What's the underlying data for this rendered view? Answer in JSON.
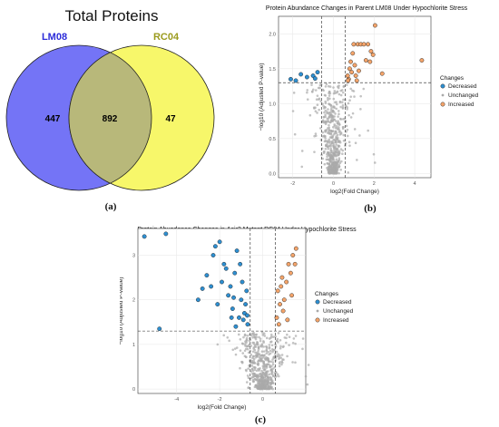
{
  "chart_data": [
    {
      "type": "venn",
      "title": "Total Proteins",
      "sets": [
        {
          "name": "LM08",
          "only": 447,
          "color": "#7474f6",
          "label_color": "#2c2cd9"
        },
        {
          "name": "RC04",
          "only": 47,
          "color": "#f7f76a",
          "label_color": "#9b9b1e"
        }
      ],
      "intersection": 892,
      "intersection_color": "#b8b87a",
      "caption": "(a)"
    },
    {
      "type": "scatter",
      "title": "Protein Abundance Changes in Parent LM08 Under Hypochlorite Stress",
      "xlabel": "log2(Fold Change)",
      "ylabel": "−log10 (Adjusted P-value)",
      "xlim": [
        -2.7,
        4.8
      ],
      "ylim": [
        -0.06,
        2.25
      ],
      "xticks": [
        -2,
        0,
        2,
        4
      ],
      "yticks": [
        0.0,
        0.5,
        1.0,
        1.5,
        2.0
      ],
      "vlines": [
        -0.58,
        0.58
      ],
      "hline": 1.3,
      "grid": true,
      "legend": {
        "title": "Changes",
        "items": [
          "Decreased",
          "Unchanged",
          "Increased"
        ],
        "position": "right"
      },
      "series": [
        {
          "name": "Decreased",
          "color": "#2e8fd1",
          "points": [
            [
              -2.1,
              1.35
            ],
            [
              -1.6,
              1.42
            ],
            [
              -1.3,
              1.38
            ],
            [
              -1.0,
              1.4
            ],
            [
              -0.9,
              1.36
            ],
            [
              -0.78,
              1.45
            ],
            [
              -1.85,
              1.33
            ]
          ]
        },
        {
          "name": "Increased",
          "color": "#f4a46a",
          "points": [
            [
              0.7,
              1.4
            ],
            [
              0.75,
              1.35
            ],
            [
              0.8,
              1.5
            ],
            [
              0.85,
              1.6
            ],
            [
              0.9,
              1.45
            ],
            [
              0.95,
              1.72
            ],
            [
              1.0,
              1.85
            ],
            [
              1.05,
              1.55
            ],
            [
              1.1,
              1.4
            ],
            [
              1.15,
              1.33
            ],
            [
              1.2,
              1.85
            ],
            [
              1.35,
              1.85
            ],
            [
              1.5,
              1.85
            ],
            [
              1.6,
              1.62
            ],
            [
              1.7,
              1.85
            ],
            [
              1.85,
              1.75
            ],
            [
              1.95,
              1.7
            ],
            [
              2.05,
              2.12
            ],
            [
              2.4,
              1.43
            ],
            [
              4.35,
              1.62
            ],
            [
              0.72,
              1.33
            ],
            [
              1.25,
              1.47
            ],
            [
              1.8,
              1.6
            ]
          ]
        }
      ],
      "unchanged_color": "#a9a9a9",
      "caption": "(b)"
    },
    {
      "type": "scatter",
      "title": "Protein Abundance Changes in Δsir2 Mutant RC04 Under Hypochlorite Stress",
      "xlabel": "log2(Fold Change)",
      "ylabel": "−log10 (Adjusted P-value)",
      "xlim": [
        -5.8,
        2.0
      ],
      "ylim": [
        -0.1,
        3.6
      ],
      "xticks": [
        -4,
        -2,
        0
      ],
      "yticks": [
        0,
        1,
        2,
        3
      ],
      "vlines": [
        -0.58,
        0.58
      ],
      "hline": 1.3,
      "grid": true,
      "legend": {
        "title": "Changes",
        "items": [
          "Decreased",
          "Unchanged",
          "Increased"
        ],
        "position": "right"
      },
      "series": [
        {
          "name": "Decreased",
          "color": "#2e8fd1",
          "points": [
            [
              -5.5,
              3.42
            ],
            [
              -4.5,
              3.48
            ],
            [
              -4.8,
              1.35
            ],
            [
              -3.0,
              2.0
            ],
            [
              -2.6,
              2.55
            ],
            [
              -2.8,
              2.25
            ],
            [
              -2.3,
              3.0
            ],
            [
              -2.2,
              3.2
            ],
            [
              -2.0,
              3.3
            ],
            [
              -1.8,
              2.8
            ],
            [
              -1.6,
              2.1
            ],
            [
              -1.4,
              1.8
            ],
            [
              -1.9,
              2.4
            ],
            [
              -1.7,
              2.7
            ],
            [
              -2.4,
              2.3
            ],
            [
              -2.1,
              1.9
            ],
            [
              -1.5,
              2.3
            ],
            [
              -1.3,
              2.6
            ],
            [
              -1.2,
              3.1
            ],
            [
              -1.1,
              1.6
            ],
            [
              -1.0,
              2.0
            ],
            [
              -0.9,
              1.55
            ],
            [
              -0.8,
              1.9
            ],
            [
              -0.75,
              2.2
            ],
            [
              -0.7,
              1.45
            ],
            [
              -1.25,
              1.4
            ],
            [
              -1.45,
              1.6
            ],
            [
              -0.95,
              2.4
            ],
            [
              -1.05,
              2.8
            ],
            [
              -1.35,
              2.05
            ],
            [
              -0.85,
              1.7
            ],
            [
              -0.72,
              1.65
            ]
          ]
        },
        {
          "name": "Increased",
          "color": "#f4a46a",
          "points": [
            [
              0.65,
              1.6
            ],
            [
              0.7,
              2.2
            ],
            [
              0.8,
              1.9
            ],
            [
              0.9,
              2.5
            ],
            [
              1.0,
              2.0
            ],
            [
              1.1,
              2.4
            ],
            [
              1.2,
              2.8
            ],
            [
              1.3,
              2.6
            ],
            [
              1.4,
              3.0
            ],
            [
              1.5,
              2.8
            ],
            [
              1.55,
              3.15
            ],
            [
              0.75,
              1.45
            ],
            [
              0.95,
              1.75
            ],
            [
              1.15,
              1.55
            ],
            [
              1.35,
              2.1
            ],
            [
              0.85,
              2.3
            ]
          ]
        }
      ],
      "unchanged_color": "#a9a9a9",
      "caption": "(c)"
    }
  ]
}
